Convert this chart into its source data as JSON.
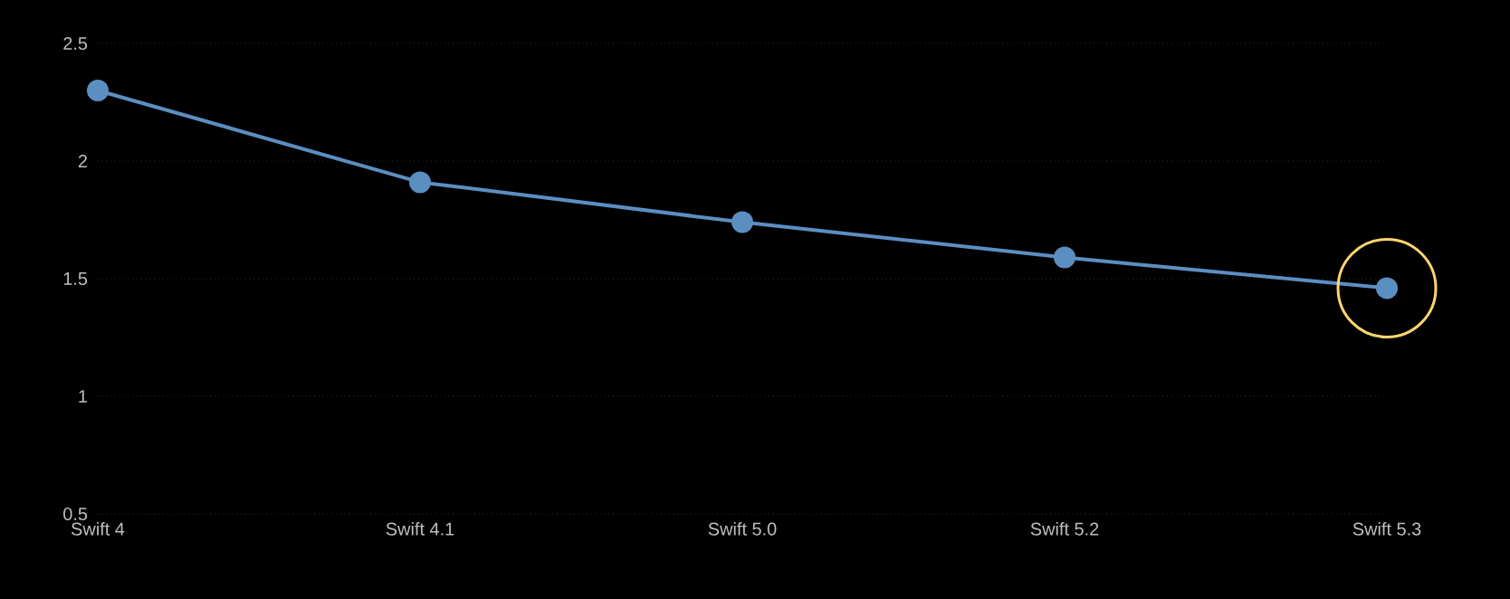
{
  "chart_data": {
    "type": "line",
    "categories": [
      "Swift 4",
      "Swift 4.1",
      "Swift 5.0",
      "Swift 5.2",
      "Swift 5.3"
    ],
    "series": [
      {
        "color": "#5b8fc2",
        "values": [
          2.3,
          1.91,
          1.74,
          1.59,
          1.46
        ]
      }
    ],
    "ylim": [
      0.5,
      2.5
    ],
    "yticks": [
      0.5,
      1,
      1.5,
      2,
      2.5
    ],
    "grid": "y",
    "marker": "circle",
    "line_style": "solid"
  }
}
